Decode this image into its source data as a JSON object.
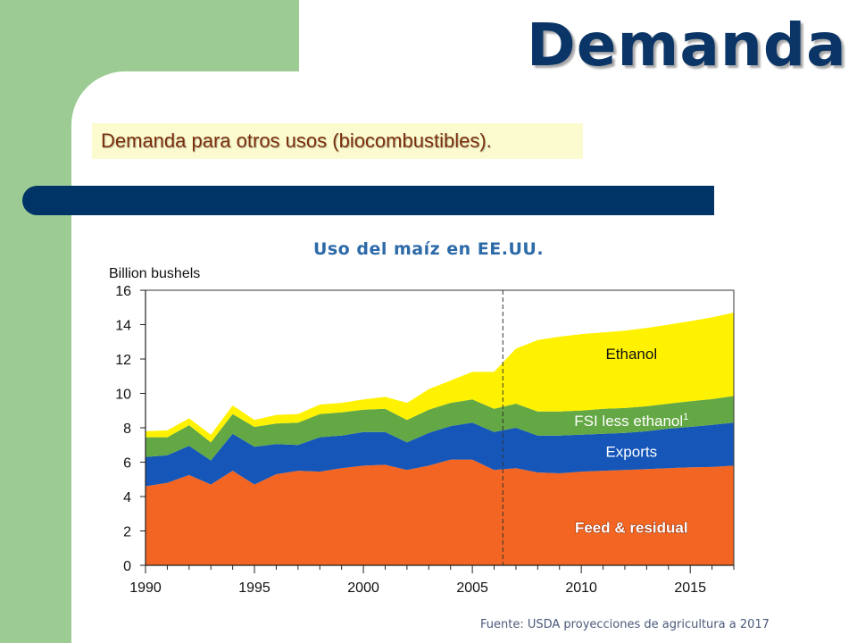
{
  "slide": {
    "title": "Demanda",
    "subtitle": "Demanda para otros usos (biocombustibles).",
    "source": "Fuente: USDA proyecciones de agricultura a 2017"
  },
  "colors": {
    "background_green": "#9ccc94",
    "title_bar": "#003366",
    "title_text": "#0b3566",
    "subtitle_bg": "#fcfbd0",
    "subtitle_text": "#7a2e0c",
    "chart_title": "#2c6aa8"
  },
  "chart_data": {
    "type": "area",
    "stacked": true,
    "title": "Uso del maíz en EE.UU.",
    "ylabel": "Billion bushels",
    "xlim": [
      1990,
      2017
    ],
    "ylim": [
      0,
      16
    ],
    "x_ticks": [
      1990,
      1995,
      2000,
      2005,
      2010,
      2015
    ],
    "y_ticks": [
      0,
      2,
      4,
      6,
      8,
      10,
      12,
      14,
      16
    ],
    "projection_line_x": 2006.4,
    "grid": false,
    "x": [
      1990,
      1991,
      1992,
      1993,
      1994,
      1995,
      1996,
      1997,
      1998,
      1999,
      2000,
      2001,
      2002,
      2003,
      2004,
      2005,
      2006,
      2007,
      2008,
      2009,
      2010,
      2011,
      2012,
      2013,
      2014,
      2015,
      2016,
      2017
    ],
    "series": [
      {
        "name": "Feed & residual",
        "color": "#f26522",
        "values": [
          4.6,
          4.8,
          5.25,
          4.7,
          5.5,
          4.7,
          5.3,
          5.5,
          5.45,
          5.65,
          5.8,
          5.85,
          5.55,
          5.8,
          6.15,
          6.15,
          5.55,
          5.65,
          5.4,
          5.35,
          5.45,
          5.5,
          5.55,
          5.6,
          5.65,
          5.7,
          5.72,
          5.8
        ]
      },
      {
        "name": "Exports",
        "color": "#1556b8",
        "values": [
          1.7,
          1.6,
          1.7,
          1.4,
          2.15,
          2.2,
          1.75,
          1.5,
          2.0,
          1.9,
          1.95,
          1.9,
          1.6,
          1.9,
          1.95,
          2.15,
          2.2,
          2.35,
          2.15,
          2.2,
          2.15,
          2.15,
          2.15,
          2.2,
          2.3,
          2.35,
          2.45,
          2.5
        ]
      },
      {
        "name": "FSI less ethanol",
        "label_superscript": "1",
        "color": "#63a844",
        "values": [
          1.15,
          1.05,
          1.2,
          1.05,
          1.15,
          1.15,
          1.2,
          1.3,
          1.35,
          1.35,
          1.3,
          1.35,
          1.3,
          1.35,
          1.35,
          1.35,
          1.35,
          1.4,
          1.4,
          1.4,
          1.4,
          1.45,
          1.45,
          1.45,
          1.45,
          1.5,
          1.5,
          1.55
        ]
      },
      {
        "name": "Ethanol",
        "color": "#fff200",
        "values": [
          0.35,
          0.4,
          0.4,
          0.45,
          0.5,
          0.4,
          0.5,
          0.5,
          0.55,
          0.55,
          0.6,
          0.7,
          1.0,
          1.2,
          1.3,
          1.6,
          2.15,
          3.2,
          4.15,
          4.35,
          4.45,
          4.45,
          4.5,
          4.55,
          4.6,
          4.65,
          4.75,
          4.85
        ]
      }
    ]
  }
}
